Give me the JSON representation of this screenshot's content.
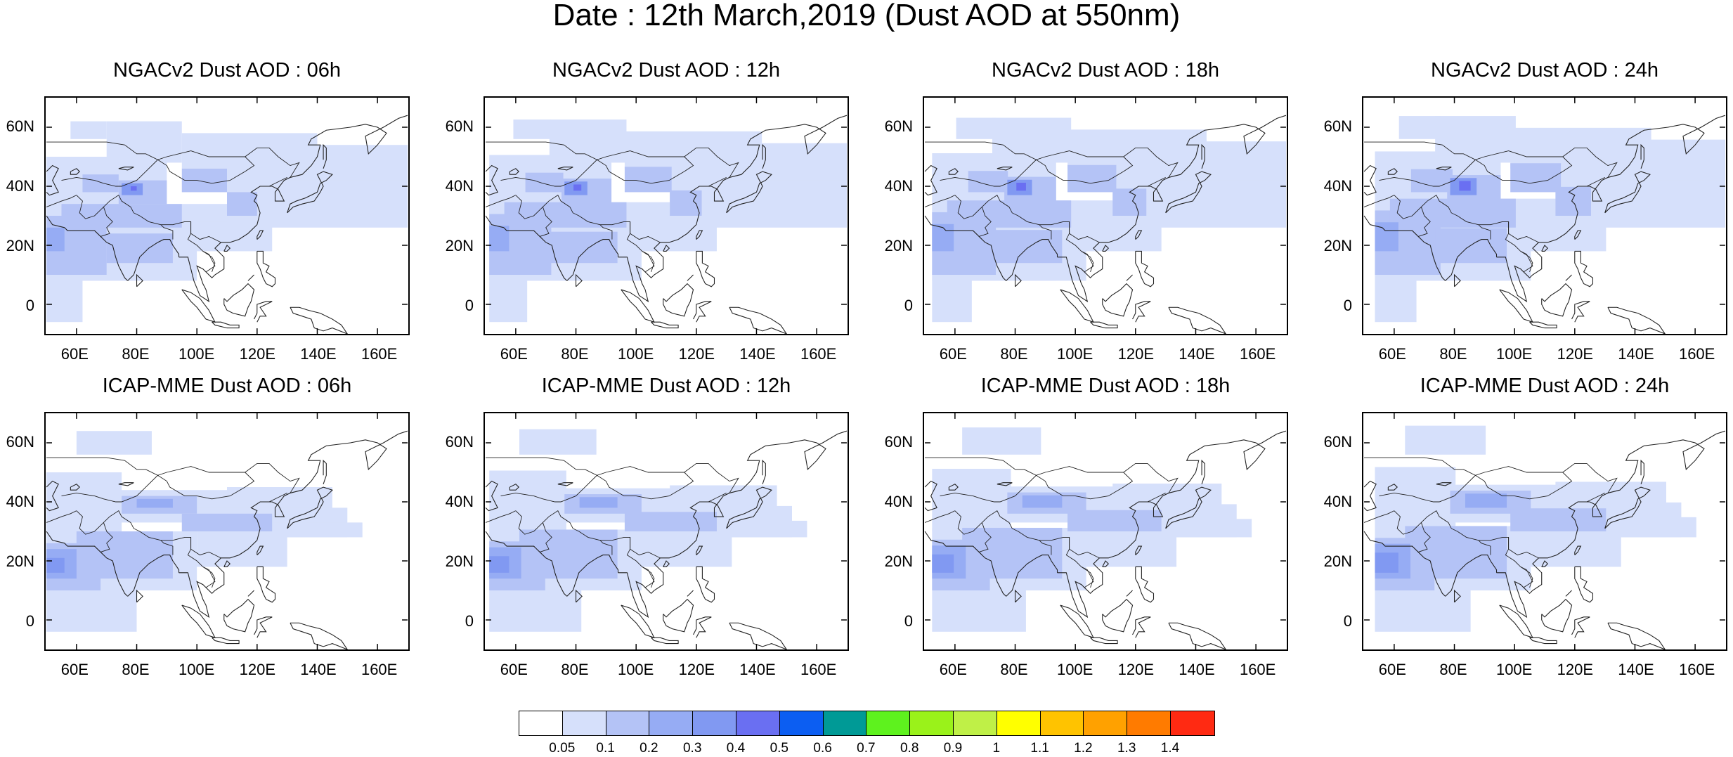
{
  "title": "Date : 12th March,2019 (Dust AOD at 550nm)",
  "lat_labels": [
    "60N",
    "40N",
    "20N",
    "0"
  ],
  "lat_values": [
    60,
    40,
    20,
    0
  ],
  "lon_labels": [
    "60E",
    "80E",
    "100E",
    "120E",
    "140E",
    "160E"
  ],
  "lon_values": [
    60,
    80,
    100,
    120,
    140,
    160
  ],
  "map_extent": {
    "lon": [
      50,
      170
    ],
    "lat": [
      -10,
      70
    ]
  },
  "panels": [
    {
      "title": "NGACv2 Dust AOD : 06h",
      "model": "NGACv2",
      "hour": 6
    },
    {
      "title": "NGACv2 Dust AOD : 12h",
      "model": "NGACv2",
      "hour": 12
    },
    {
      "title": "NGACv2 Dust AOD : 18h",
      "model": "NGACv2",
      "hour": 18
    },
    {
      "title": "NGACv2 Dust AOD : 24h",
      "model": "NGACv2",
      "hour": 24
    },
    {
      "title": "ICAP-MME Dust AOD : 06h",
      "model": "ICAP-MME",
      "hour": 6
    },
    {
      "title": "ICAP-MME Dust AOD : 12h",
      "model": "ICAP-MME",
      "hour": 12
    },
    {
      "title": "ICAP-MME Dust AOD : 18h",
      "model": "ICAP-MME",
      "hour": 18
    },
    {
      "title": "ICAP-MME Dust AOD : 24h",
      "model": "ICAP-MME",
      "hour": 24
    }
  ],
  "colorbar": {
    "colors": [
      "#ffffff",
      "#d6e0fb",
      "#b4c3f6",
      "#96acf4",
      "#8199f2",
      "#6a6ff2",
      "#0c5ef2",
      "#009a96",
      "#5ef21e",
      "#9af21a",
      "#bff047",
      "#ffff00",
      "#ffc300",
      "#ffa100",
      "#ff7b00",
      "#ff2a12"
    ],
    "labels": [
      "0.05",
      "0.1",
      "0.2",
      "0.3",
      "0.4",
      "0.5",
      "0.6",
      "0.7",
      "0.8",
      "0.9",
      "1",
      "1.1",
      "1.2",
      "1.3",
      "1.4"
    ]
  }
}
